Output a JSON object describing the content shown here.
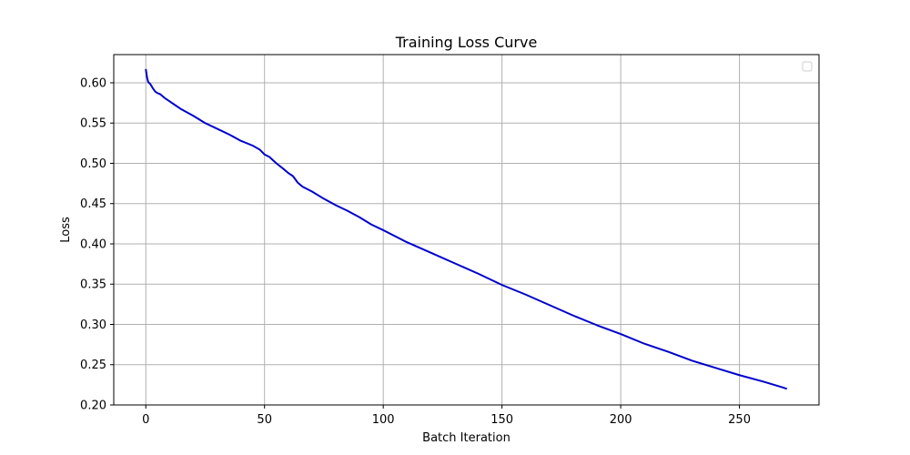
{
  "chart_data": {
    "type": "line",
    "title": "Training Loss Curve",
    "xlabel": "Batch Iteration",
    "ylabel": "Loss",
    "xlim": [
      -13.5,
      283.5
    ],
    "ylim": [
      0.2,
      0.635
    ],
    "xticks": [
      0,
      50,
      100,
      150,
      200,
      250
    ],
    "yticks": [
      0.2,
      0.25,
      0.3,
      0.35,
      0.4,
      0.45,
      0.5,
      0.55,
      0.6
    ],
    "grid": true,
    "legend": {
      "position": "top-right",
      "entries": []
    },
    "line_color": "#0000cc",
    "grid_color": "#b0b0b0",
    "series": [
      {
        "x": [
          0,
          0.5,
          1,
          2,
          3,
          4,
          5,
          6,
          8,
          10,
          12,
          15,
          20,
          25,
          30,
          35,
          40,
          45,
          48,
          50,
          52,
          55,
          58,
          60,
          62,
          64,
          66,
          70,
          75,
          80,
          85,
          90,
          95,
          100,
          110,
          120,
          130,
          140,
          150,
          160,
          170,
          180,
          190,
          200,
          210,
          220,
          230,
          240,
          250,
          260,
          268,
          270
        ],
        "y": [
          0.617,
          0.607,
          0.601,
          0.598,
          0.593,
          0.589,
          0.587,
          0.586,
          0.581,
          0.577,
          0.573,
          0.567,
          0.559,
          0.55,
          0.543,
          0.536,
          0.528,
          0.522,
          0.517,
          0.511,
          0.508,
          0.5,
          0.493,
          0.488,
          0.484,
          0.476,
          0.471,
          0.465,
          0.456,
          0.448,
          0.441,
          0.433,
          0.424,
          0.417,
          0.402,
          0.389,
          0.376,
          0.363,
          0.349,
          0.337,
          0.324,
          0.311,
          0.299,
          0.288,
          0.276,
          0.266,
          0.255,
          0.246,
          0.237,
          0.229,
          0.222,
          0.22
        ]
      }
    ]
  }
}
